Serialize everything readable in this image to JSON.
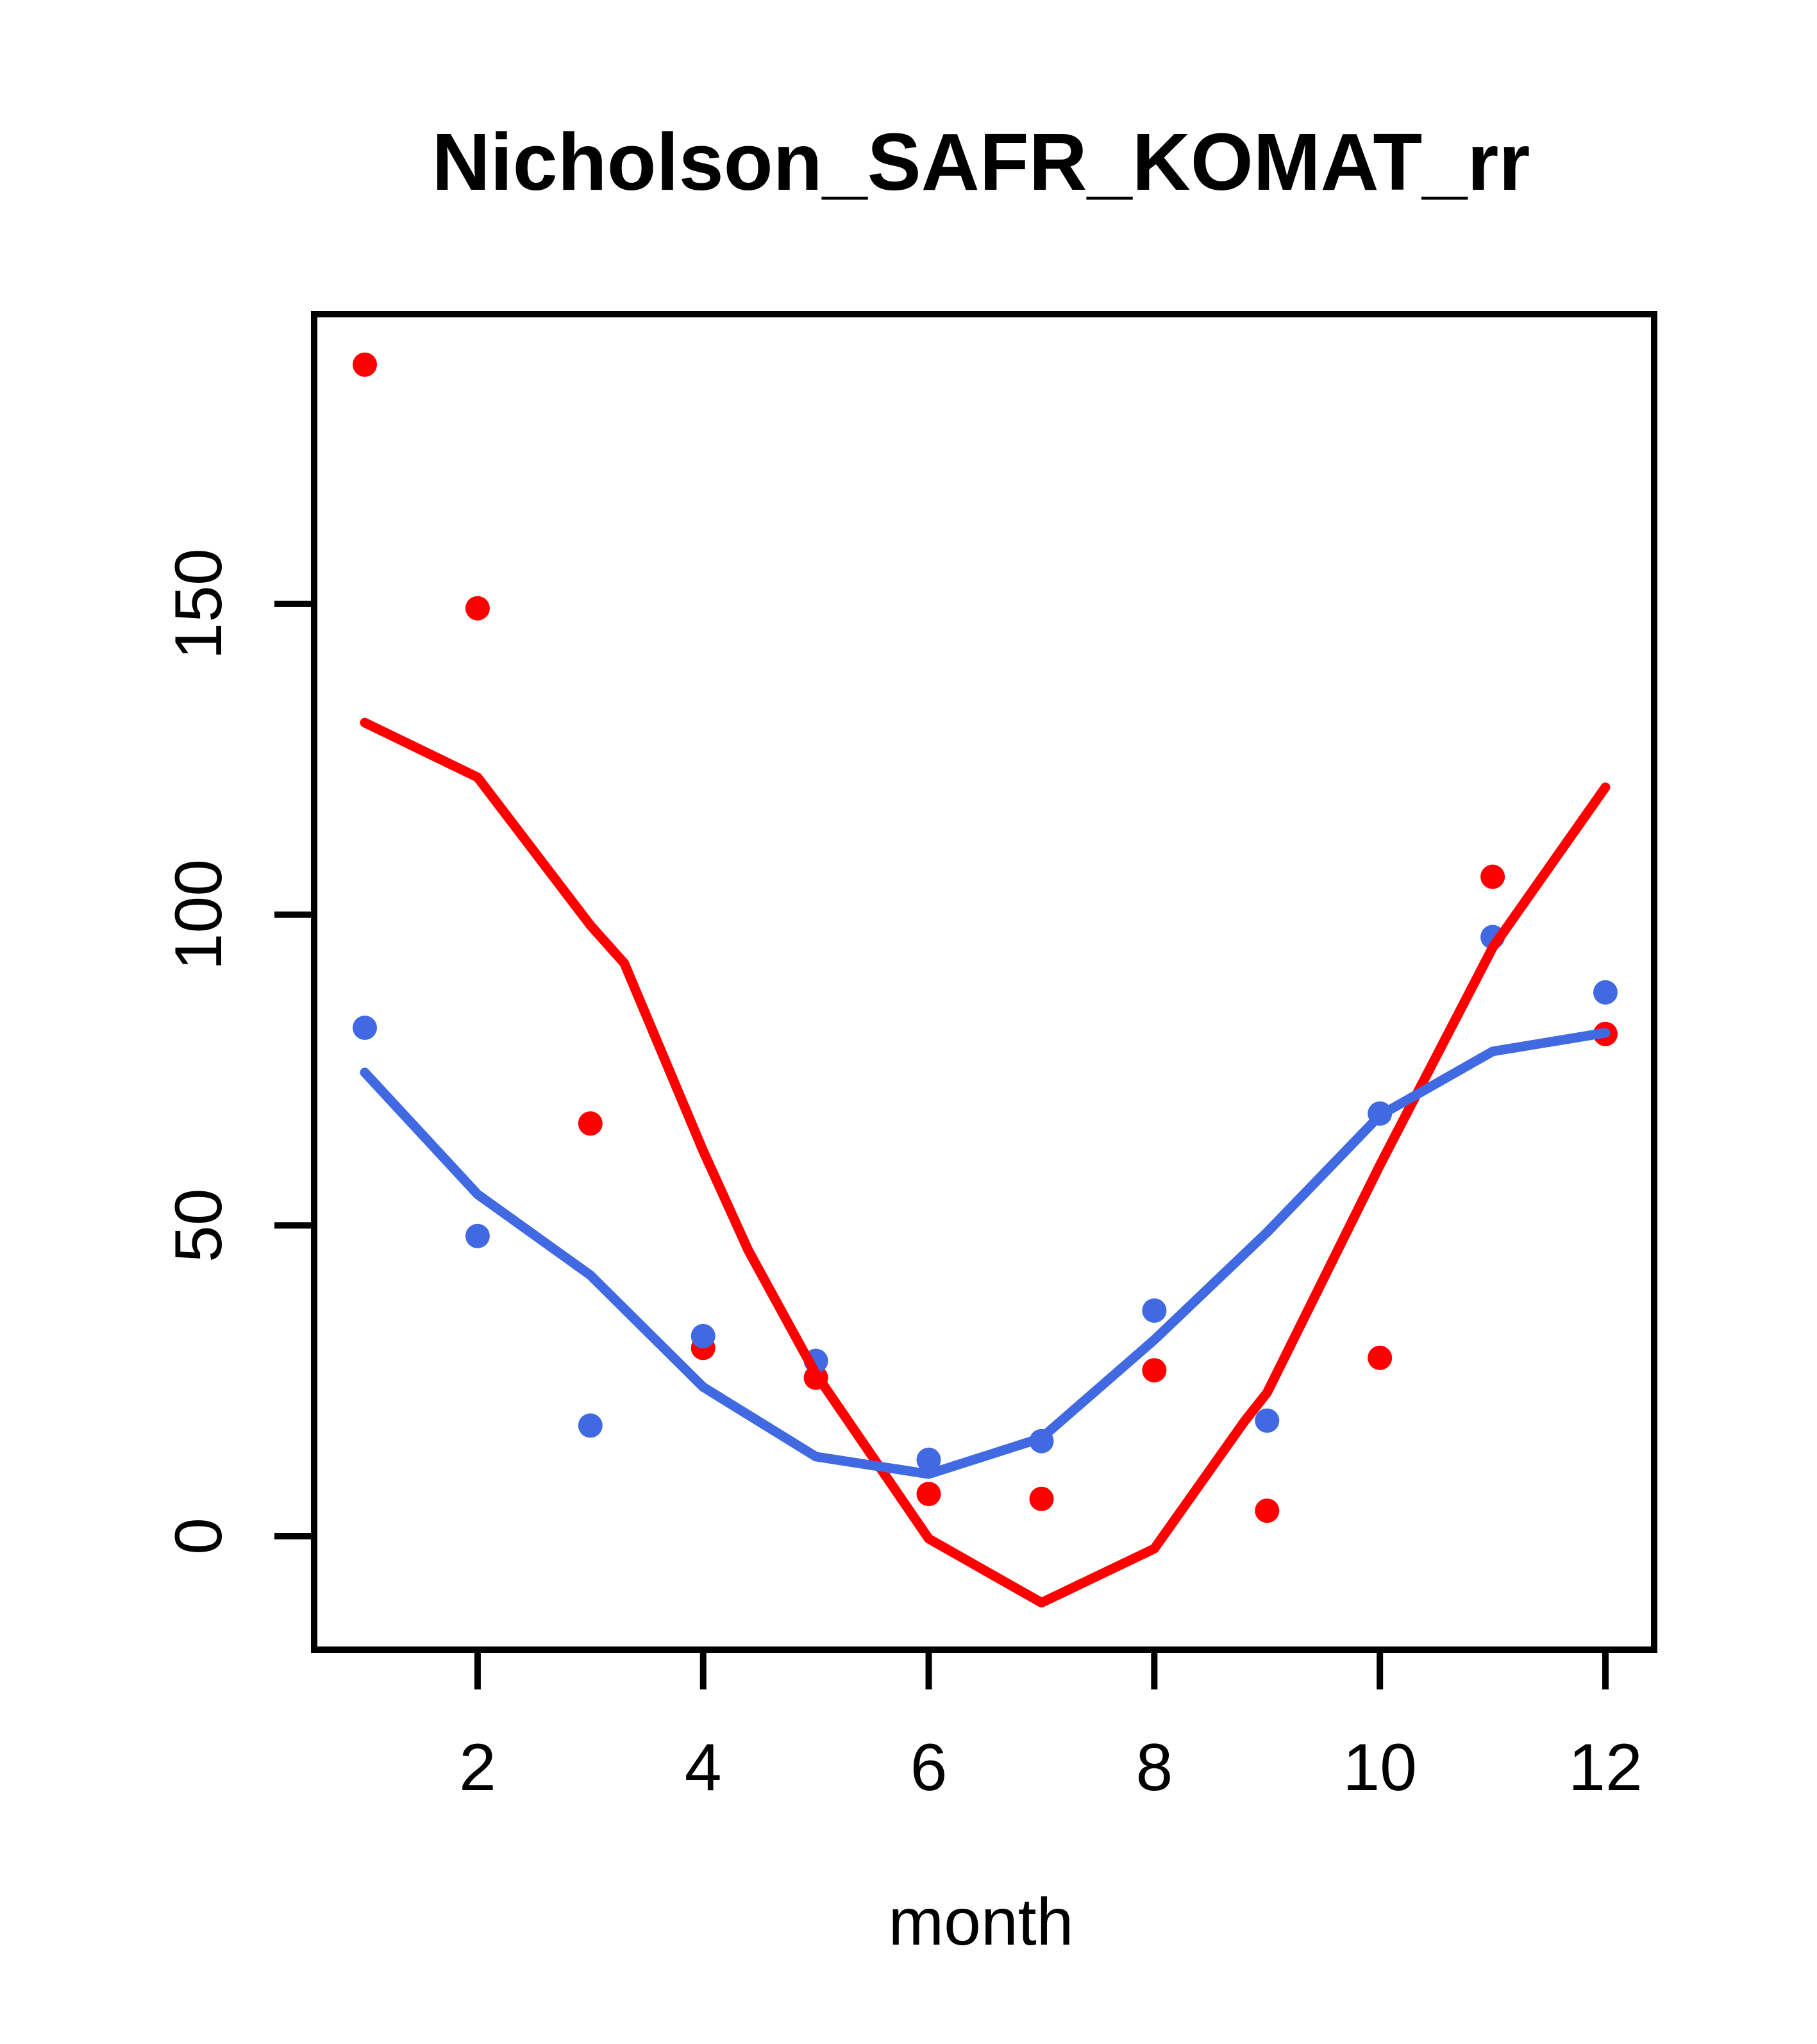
{
  "title": "Nicholson_SAFR_KOMAT_rr",
  "colors": {
    "red_series": "#FF0000",
    "blue_series": "#4169E1",
    "axis": "#000000",
    "background": "#FFFFFF"
  },
  "chart_data": {
    "type": "scatter",
    "title": "Nicholson_SAFR_KOMAT_rr",
    "xlabel": "month",
    "ylabel": "",
    "grid": false,
    "legend": "none",
    "xlim": [
      0.551,
      12.432
    ],
    "ylim": [
      -18.26,
      196.62
    ],
    "x_ticks": [
      2,
      4,
      6,
      8,
      10,
      12
    ],
    "y_ticks": [
      0,
      50,
      100,
      150
    ],
    "months": [
      1,
      2,
      3,
      4,
      5,
      6,
      7,
      8,
      9,
      10,
      11,
      12
    ],
    "series": [
      {
        "name": "red-points",
        "kind": "points",
        "color_key": "red_series",
        "x": [
          1,
          2,
          3,
          4,
          5,
          6,
          7,
          8,
          9,
          10,
          11,
          12
        ],
        "y": [
          188.5,
          149.3,
          66.4,
          30.3,
          25.5,
          6.8,
          6.0,
          26.7,
          4.1,
          28.7,
          106.1,
          80.8
        ]
      },
      {
        "name": "blue-points",
        "kind": "points",
        "color_key": "blue_series",
        "x": [
          1,
          2,
          3,
          4,
          5,
          6,
          7,
          8,
          9,
          10,
          11,
          12
        ],
        "y": [
          81.8,
          48.3,
          17.8,
          32.2,
          28.2,
          12.3,
          15.3,
          36.3,
          18.6,
          68.0,
          96.4,
          87.5
        ]
      },
      {
        "name": "red-loess-line",
        "kind": "line",
        "color_key": "red_series",
        "points": [
          [
            1,
            130.9
          ],
          [
            2,
            122.1
          ],
          [
            3,
            98.3
          ],
          [
            3.3,
            92.2
          ],
          [
            4,
            62.0
          ],
          [
            4.4,
            46.0
          ],
          [
            5,
            26.1
          ],
          [
            6,
            -0.4
          ],
          [
            7,
            -10.7
          ],
          [
            8,
            -2.0
          ],
          [
            8.8,
            18.5
          ],
          [
            9,
            23.1
          ],
          [
            10,
            59.7
          ],
          [
            11,
            94.7
          ],
          [
            12,
            120.5
          ]
        ]
      },
      {
        "name": "blue-loess-line",
        "kind": "line",
        "color_key": "blue_series",
        "points": [
          [
            1,
            74.6
          ],
          [
            2,
            55.0
          ],
          [
            3,
            42.0
          ],
          [
            4,
            24.0
          ],
          [
            5,
            12.8
          ],
          [
            6,
            10.0
          ],
          [
            7,
            15.8
          ],
          [
            8,
            31.6
          ],
          [
            9,
            48.9
          ],
          [
            10,
            67.7
          ],
          [
            11,
            78.0
          ],
          [
            12,
            81.0
          ]
        ]
      }
    ]
  }
}
